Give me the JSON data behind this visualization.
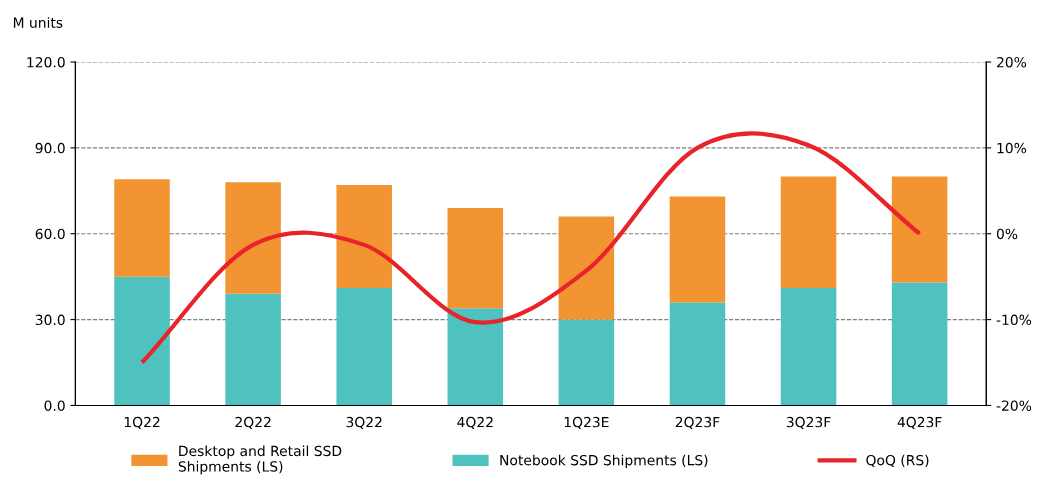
{
  "chart_data": {
    "type": "bar",
    "stacked": true,
    "ylabel": "M units",
    "categories": [
      "1Q22",
      "2Q22",
      "3Q22",
      "4Q22",
      "1Q23E",
      "2Q23F",
      "3Q23F",
      "4Q23F"
    ],
    "series": [
      {
        "name": "Notebook SSD Shipments (LS)",
        "color": "#4fc1be",
        "values": [
          45,
          39,
          41,
          34,
          30,
          36,
          41,
          43
        ]
      },
      {
        "name": "Desktop and Retail SSD\nShipments (LS)",
        "color": "#f39433",
        "values": [
          34,
          39,
          36,
          35,
          36,
          37,
          39,
          37
        ]
      },
      {
        "name": "QoQ (RS)",
        "type": "line",
        "axis": "y2",
        "color": "#e8232a",
        "values": [
          -15,
          -1.3,
          -1.3,
          -10.3,
          -4.3,
          10,
          10.3,
          0
        ]
      }
    ],
    "ylim": [
      0,
      120
    ],
    "yticks": [
      {
        "value": 0,
        "label": "0.0"
      },
      {
        "value": 30,
        "label": "30.0"
      },
      {
        "value": 60,
        "label": "60.0"
      },
      {
        "value": 90,
        "label": "90.0"
      },
      {
        "value": 120,
        "label": "120.0"
      }
    ],
    "y2lim": [
      -20,
      20
    ],
    "y2ticks": [
      {
        "value": -20,
        "label": "-20%"
      },
      {
        "value": -10,
        "label": "-10%"
      },
      {
        "value": 0,
        "label": "0%"
      },
      {
        "value": 10,
        "label": "10%"
      },
      {
        "value": 20,
        "label": "20%"
      }
    ],
    "grid": "y",
    "legend": "bottom",
    "line_style": "solid"
  }
}
